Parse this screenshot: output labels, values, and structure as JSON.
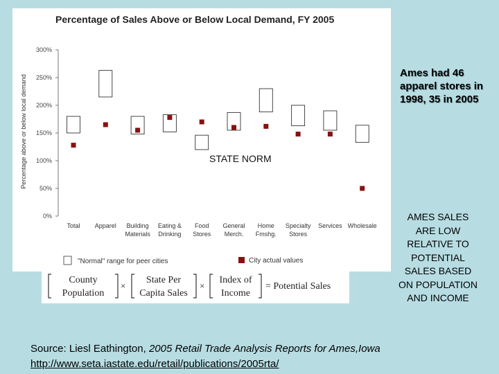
{
  "chart_data": {
    "type": "range-and-point",
    "title": "Percentage of Sales Above or Below Local Demand, FY 2005",
    "ylabel": "Percentage above or below local demand",
    "ylim": [
      0,
      300
    ],
    "ytick_labels": [
      "0%",
      "50%",
      "100%",
      "150%",
      "200%",
      "250%",
      "300%"
    ],
    "yticks": [
      0,
      50,
      100,
      150,
      200,
      250,
      300
    ],
    "categories": [
      [
        "Total"
      ],
      [
        "Apparel"
      ],
      [
        "Building",
        "Materials"
      ],
      [
        "Eating &",
        "Drinking"
      ],
      [
        "Food",
        "Stores"
      ],
      [
        "General",
        "Merch."
      ],
      [
        "Home",
        "Fmshg."
      ],
      [
        "Specialty",
        "Stores"
      ],
      [
        "Services"
      ],
      [
        "Wholesale"
      ]
    ],
    "series": [
      {
        "name": "\"Normal\" range for peer cities",
        "style": "open-box",
        "ranges": [
          [
            150,
            180
          ],
          [
            215,
            263
          ],
          [
            148,
            180
          ],
          [
            152,
            183
          ],
          [
            120,
            146
          ],
          [
            155,
            187
          ],
          [
            188,
            230
          ],
          [
            163,
            200
          ],
          [
            155,
            190
          ],
          [
            133,
            164
          ]
        ]
      },
      {
        "name": "City actual values",
        "style": "square-marker",
        "color": "#8b1010",
        "values": [
          128,
          165,
          155,
          178,
          170,
          160,
          162,
          148,
          148,
          50
        ]
      }
    ],
    "annotations": [
      "STATE NORM"
    ],
    "grid": false,
    "legend_position": "bottom"
  },
  "formula": {
    "term1_line1": "County",
    "term1_line2": "Population",
    "times1": "×",
    "term2_line1": "State  Per",
    "term2_line2": "Capita  Sales",
    "times2": "×",
    "term3_line1": "Index   of",
    "term3_line2": "Income",
    "result": "= Potential  Sales"
  },
  "notes": {
    "ames_stores": "Ames had 46 apparel stores in 1998, 35 in 2005",
    "sales_low": "AMES SALES ARE LOW RELATIVE TO POTENTIAL SALES BASED ON POPULATION AND INCOME"
  },
  "source": {
    "prefix": "Source: Liesl Eathington, ",
    "title": "2005 Retail Trade Analysis Reports for Ames,Iowa",
    "url": "http://www.seta.iastate.edu/retail/publications/2005rta/"
  }
}
